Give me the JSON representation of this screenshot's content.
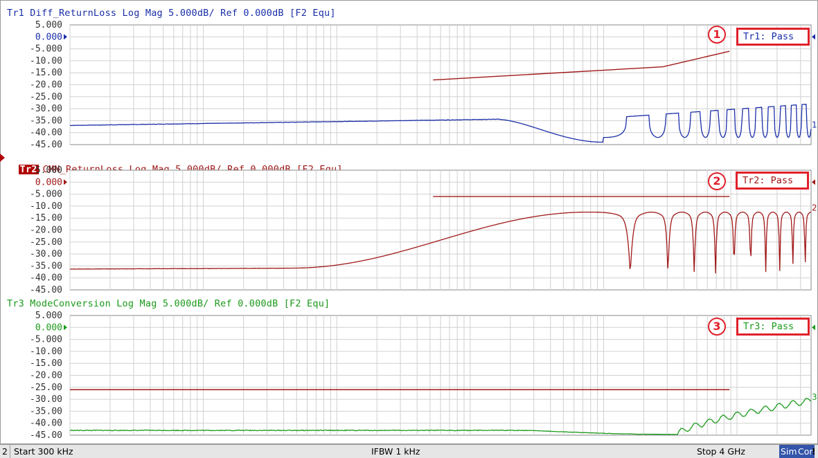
{
  "traces": [
    {
      "id": "tr1",
      "header": "Tr1 Diff_ReturnLoss Log Mag 5.000dB/ Ref 0.000dB [F2 Equ]",
      "color": "#1a2ea8",
      "active": false,
      "y_ticks": [
        "5.000",
        "0.000",
        "-5.000",
        "-10.00",
        "-15.00",
        "-20.00",
        "-25.00",
        "-30.00",
        "-35.00",
        "-40.00",
        "-45.00"
      ],
      "ref_tick": "0.000",
      "pass_label": "Tr1: Pass",
      "callout": "1",
      "end_marker": "1",
      "limit_line": {
        "x_start": 0.49,
        "x_end": 0.89,
        "db": [
          -18,
          -6
        ],
        "knee": {
          "x": 0.8,
          "db": -12.5
        }
      },
      "data_shape": "diff_return_loss"
    },
    {
      "id": "tr2",
      "header": "CMN_ReturnLoss Log Mag 5.000dB/ Ref 0.000dB [F2 Equ]",
      "badge": "Tr2",
      "color": "#a01818",
      "active": true,
      "y_ticks": [
        "5.000",
        "0.000",
        "-5.000",
        "-10.00",
        "-15.00",
        "-20.00",
        "-25.00",
        "-30.00",
        "-35.00",
        "-40.00",
        "-45.00"
      ],
      "ref_tick": "0.000",
      "pass_label": "Tr2: Pass",
      "callout": "2",
      "end_marker": "2",
      "limit_line": {
        "x_start": 0.49,
        "x_end": 0.89,
        "db": [
          -6,
          -6
        ]
      },
      "data_shape": "cmn_return_loss"
    },
    {
      "id": "tr3",
      "header": "Tr3 ModeConversion Log Mag 5.000dB/ Ref 0.000dB [F2 Equ]",
      "color": "#1a9a1a",
      "active": false,
      "y_ticks": [
        "5.000",
        "0.000",
        "-5.000",
        "-10.00",
        "-15.00",
        "-20.00",
        "-25.00",
        "-30.00",
        "-35.00",
        "-40.00",
        "-45.00"
      ],
      "ref_tick": "0.000",
      "pass_label": "Tr3: Pass",
      "callout": "3",
      "end_marker": "3",
      "limit_line": {
        "x_start": 0.0,
        "x_end": 0.89,
        "db": [
          -26,
          -26
        ]
      },
      "data_shape": "mode_conversion"
    }
  ],
  "limit_color": "#a01818",
  "status": {
    "channel": "2",
    "start": "Start 300 kHz",
    "ifbw": "IFBW 1 kHz",
    "stop": "Stop 4 GHz",
    "sim": "Sim",
    "cor": "Cor",
    "excl": "!"
  }
}
